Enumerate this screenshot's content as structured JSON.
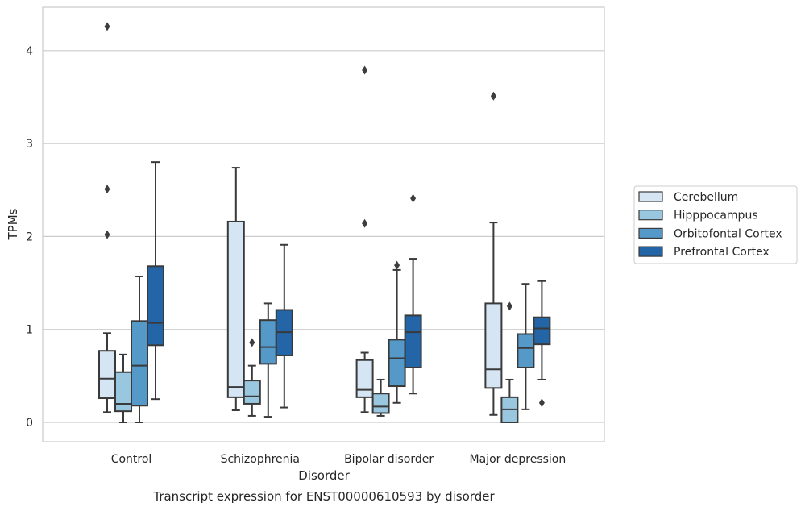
{
  "chart_data": {
    "type": "box",
    "title": "",
    "caption": "Transcript expression for ENST00000610593 by disorder",
    "xlabel": "Disorder",
    "ylabel": "TPMs",
    "ylim": [
      -0.2,
      4.7
    ],
    "yticks": [
      0,
      1,
      2,
      3,
      4
    ],
    "grid": "horizontal",
    "legend_position": "right",
    "categories": [
      "Control",
      "Schizophrenia",
      "Bipolar disorder",
      "Major depression"
    ],
    "series": [
      {
        "name": "Cerebellum",
        "color": "#d6e5f4",
        "boxes": [
          {
            "min": 0.11,
            "q1": 0.26,
            "median": 0.47,
            "q3": 0.77,
            "max": 0.96,
            "outliers": [
              2.02,
              2.51,
              4.26
            ]
          },
          {
            "min": 0.13,
            "q1": 0.27,
            "median": 0.38,
            "q3": 2.16,
            "max": 2.74,
            "outliers": []
          },
          {
            "min": 0.11,
            "q1": 0.27,
            "median": 0.35,
            "q3": 0.67,
            "max": 0.75,
            "outliers": [
              2.14,
              3.79
            ]
          },
          {
            "min": 0.08,
            "q1": 0.37,
            "median": 0.57,
            "q3": 1.28,
            "max": 2.15,
            "outliers": [
              3.51
            ]
          }
        ]
      },
      {
        "name": "Hipppocampus",
        "color": "#9ac7e0",
        "boxes": [
          {
            "min": 0.0,
            "q1": 0.12,
            "median": 0.2,
            "q3": 0.54,
            "max": 0.73,
            "outliers": []
          },
          {
            "min": 0.07,
            "q1": 0.2,
            "median": 0.28,
            "q3": 0.45,
            "max": 0.61,
            "outliers": [
              0.86
            ]
          },
          {
            "min": 0.07,
            "q1": 0.1,
            "median": 0.17,
            "q3": 0.31,
            "max": 0.46,
            "outliers": []
          },
          {
            "min": 0.0,
            "q1": 0.0,
            "median": 0.14,
            "q3": 0.27,
            "max": 0.46,
            "outliers": [
              1.25
            ]
          }
        ]
      },
      {
        "name": "Orbitofontal Cortex",
        "color": "#5599c8",
        "boxes": [
          {
            "min": 0.0,
            "q1": 0.18,
            "median": 0.61,
            "q3": 1.09,
            "max": 1.57,
            "outliers": []
          },
          {
            "min": 0.06,
            "q1": 0.63,
            "median": 0.81,
            "q3": 1.1,
            "max": 1.28,
            "outliers": []
          },
          {
            "min": 0.21,
            "q1": 0.39,
            "median": 0.69,
            "q3": 0.89,
            "max": 1.64,
            "outliers": [
              1.69
            ]
          },
          {
            "min": 0.14,
            "q1": 0.59,
            "median": 0.8,
            "q3": 0.95,
            "max": 1.49,
            "outliers": []
          }
        ]
      },
      {
        "name": "Prefrontal Cortex",
        "color": "#2365a6",
        "boxes": [
          {
            "min": 0.25,
            "q1": 0.83,
            "median": 1.07,
            "q3": 1.68,
            "max": 2.8,
            "outliers": []
          },
          {
            "min": 0.16,
            "q1": 0.72,
            "median": 0.97,
            "q3": 1.21,
            "max": 1.91,
            "outliers": []
          },
          {
            "min": 0.31,
            "q1": 0.59,
            "median": 0.97,
            "q3": 1.15,
            "max": 1.76,
            "outliers": [
              2.41
            ]
          },
          {
            "min": 0.46,
            "q1": 0.84,
            "median": 1.01,
            "q3": 1.13,
            "max": 1.52,
            "outliers": [
              0.21
            ]
          }
        ]
      }
    ]
  }
}
